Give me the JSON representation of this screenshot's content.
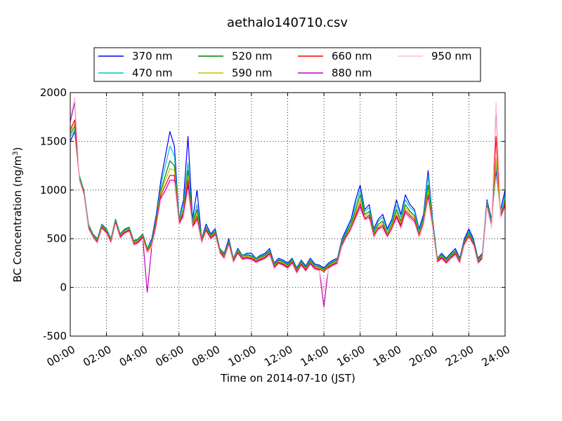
{
  "chart_data": {
    "type": "line",
    "title": "aethalo140710.csv",
    "xlabel": "Time on 2014-07-10 (JST)",
    "ylabel": "BC Concentration (ng/m³)",
    "ylabel_base": "BC Concentration (ng/m",
    "ylabel_sup": "3",
    "ylabel_close": ")",
    "xlim": [
      "00:00",
      "24:00"
    ],
    "ylim": [
      -500,
      2000
    ],
    "grid": true,
    "legend_position": "top",
    "x_ticks": [
      "00:00",
      "02:00",
      "04:00",
      "06:00",
      "08:00",
      "10:00",
      "12:00",
      "14:00",
      "16:00",
      "18:00",
      "20:00",
      "22:00",
      "24:00"
    ],
    "y_ticks": [
      -500,
      0,
      500,
      1000,
      1500,
      2000
    ],
    "x_hours": [
      0,
      0.25,
      0.5,
      0.75,
      1,
      1.25,
      1.5,
      1.75,
      2,
      2.25,
      2.5,
      2.75,
      3,
      3.25,
      3.5,
      3.75,
      4,
      4.25,
      4.5,
      4.75,
      5,
      5.25,
      5.5,
      5.75,
      6,
      6.25,
      6.5,
      6.75,
      7,
      7.25,
      7.5,
      7.75,
      8,
      8.25,
      8.5,
      8.75,
      9,
      9.25,
      9.5,
      9.75,
      10,
      10.25,
      10.5,
      10.75,
      11,
      11.25,
      11.5,
      11.75,
      12,
      12.25,
      12.5,
      12.75,
      13,
      13.25,
      13.5,
      13.75,
      14,
      14.25,
      14.5,
      14.75,
      15,
      15.25,
      15.5,
      15.75,
      16,
      16.25,
      16.5,
      16.75,
      17,
      17.25,
      17.5,
      17.75,
      18,
      18.25,
      18.5,
      18.75,
      19,
      19.25,
      19.5,
      19.75,
      20,
      20.25,
      20.5,
      20.75,
      21,
      21.25,
      21.5,
      21.75,
      22,
      22.25,
      22.5,
      22.75,
      23,
      23.25,
      23.5,
      23.75,
      24
    ],
    "series": [
      {
        "name": "370 nm",
        "color": "#0000ff",
        "values": [
          1500,
          1600,
          1150,
          1000,
          650,
          550,
          500,
          650,
          600,
          500,
          700,
          550,
          600,
          620,
          480,
          500,
          550,
          400,
          500,
          750,
          1100,
          1350,
          1600,
          1450,
          700,
          900,
          1550,
          700,
          1000,
          500,
          650,
          550,
          600,
          400,
          350,
          500,
          300,
          400,
          330,
          350,
          350,
          300,
          330,
          350,
          400,
          250,
          300,
          280,
          250,
          300,
          200,
          280,
          220,
          300,
          240,
          230,
          200,
          250,
          280,
          300,
          500,
          600,
          700,
          900,
          1050,
          800,
          850,
          600,
          700,
          750,
          600,
          700,
          900,
          750,
          950,
          850,
          800,
          600,
          750,
          1200,
          700,
          300,
          350,
          300,
          350,
          400,
          300,
          500,
          600,
          500,
          300,
          350,
          900,
          700,
          1200,
          800,
          1000
        ]
      },
      {
        "name": "470 nm",
        "color": "#00c0c0",
        "values": [
          1550,
          1620,
          1150,
          1000,
          650,
          550,
          500,
          650,
          600,
          500,
          700,
          550,
          600,
          620,
          480,
          500,
          550,
          400,
          480,
          720,
          1050,
          1250,
          1450,
          1350,
          700,
          850,
          1280,
          680,
          850,
          500,
          620,
          540,
          580,
          400,
          340,
          480,
          300,
          390,
          330,
          340,
          330,
          300,
          320,
          340,
          380,
          240,
          290,
          270,
          240,
          290,
          190,
          270,
          210,
          280,
          230,
          220,
          190,
          240,
          270,
          290,
          480,
          580,
          680,
          850,
          1000,
          780,
          820,
          580,
          680,
          720,
          580,
          680,
          850,
          720,
          900,
          820,
          780,
          580,
          720,
          1150,
          680,
          300,
          340,
          290,
          340,
          380,
          290,
          480,
          580,
          480,
          290,
          340,
          880,
          680,
          1250,
          780,
          950
        ]
      },
      {
        "name": "520 nm",
        "color": "#008000",
        "values": [
          1580,
          1650,
          1130,
          990,
          640,
          540,
          490,
          640,
          590,
          490,
          690,
          540,
          590,
          610,
          470,
          490,
          540,
          390,
          460,
          700,
          1000,
          1150,
          1300,
          1250,
          680,
          800,
          1200,
          650,
          800,
          490,
          610,
          530,
          570,
          390,
          330,
          470,
          290,
          380,
          320,
          330,
          320,
          290,
          310,
          330,
          370,
          230,
          280,
          260,
          230,
          280,
          180,
          260,
          200,
          270,
          220,
          210,
          180,
          230,
          260,
          280,
          460,
          560,
          650,
          800,
          950,
          750,
          780,
          560,
          650,
          680,
          550,
          650,
          800,
          680,
          850,
          780,
          740,
          550,
          700,
          1050,
          650,
          290,
          330,
          280,
          330,
          370,
          280,
          470,
          560,
          470,
          280,
          330,
          860,
          650,
          1300,
          750,
          900
        ]
      },
      {
        "name": "590 nm",
        "color": "#c0c000",
        "values": [
          1600,
          1680,
          1120,
          980,
          630,
          530,
          480,
          630,
          580,
          480,
          680,
          530,
          580,
          600,
          460,
          480,
          530,
          380,
          450,
          680,
          980,
          1100,
          1220,
          1200,
          670,
          780,
          1150,
          640,
          760,
          480,
          600,
          520,
          560,
          380,
          320,
          460,
          280,
          370,
          310,
          320,
          310,
          280,
          300,
          320,
          360,
          220,
          270,
          250,
          220,
          270,
          170,
          250,
          190,
          260,
          210,
          200,
          170,
          220,
          250,
          270,
          450,
          540,
          630,
          770,
          900,
          730,
          760,
          540,
          630,
          660,
          540,
          630,
          770,
          660,
          820,
          760,
          720,
          540,
          680,
          1000,
          640,
          280,
          320,
          270,
          320,
          360,
          270,
          460,
          540,
          460,
          270,
          320,
          850,
          640,
          1320,
          740,
          880
        ]
      },
      {
        "name": "660 nm",
        "color": "#ff0000",
        "values": [
          1620,
          1720,
          1110,
          970,
          620,
          520,
          470,
          620,
          570,
          470,
          670,
          520,
          570,
          590,
          450,
          470,
          520,
          370,
          440,
          660,
          950,
          1050,
          1150,
          1150,
          660,
          760,
          1100,
          630,
          730,
          470,
          590,
          510,
          550,
          370,
          310,
          450,
          270,
          360,
          300,
          310,
          300,
          270,
          290,
          310,
          350,
          210,
          260,
          240,
          210,
          260,
          160,
          240,
          180,
          250,
          200,
          190,
          160,
          210,
          240,
          260,
          440,
          530,
          610,
          740,
          860,
          710,
          740,
          530,
          610,
          640,
          530,
          610,
          740,
          640,
          790,
          740,
          700,
          530,
          660,
          950,
          620,
          270,
          310,
          260,
          310,
          350,
          260,
          450,
          530,
          450,
          260,
          310,
          840,
          630,
          1550,
          730,
          860
        ]
      },
      {
        "name": "880 nm",
        "color": "#c000c0",
        "values": [
          1700,
          1900,
          1100,
          960,
          610,
          520,
          460,
          610,
          560,
          460,
          660,
          510,
          560,
          580,
          440,
          460,
          510,
          -50,
          430,
          640,
          920,
          1000,
          1100,
          1100,
          650,
          740,
          1050,
          620,
          700,
          460,
          580,
          500,
          540,
          360,
          300,
          440,
          260,
          350,
          290,
          300,
          290,
          260,
          280,
          300,
          340,
          200,
          250,
          230,
          200,
          250,
          150,
          230,
          170,
          240,
          190,
          180,
          -200,
          200,
          230,
          250,
          430,
          520,
          600,
          720,
          830,
          700,
          720,
          520,
          600,
          620,
          520,
          600,
          720,
          620,
          770,
          720,
          680,
          520,
          650,
          920,
          610,
          260,
          300,
          250,
          300,
          340,
          250,
          440,
          520,
          440,
          250,
          300,
          830,
          620,
          1850,
          720,
          840
        ]
      },
      {
        "name": "950 nm",
        "color": "#ffc0cb",
        "values": [
          1750,
          1950,
          1100,
          950,
          600,
          510,
          450,
          600,
          550,
          450,
          650,
          500,
          550,
          570,
          430,
          450,
          500,
          350,
          420,
          620,
          900,
          980,
          1080,
          1080,
          640,
          720,
          1000,
          610,
          680,
          450,
          570,
          490,
          530,
          350,
          290,
          430,
          250,
          340,
          280,
          290,
          280,
          250,
          270,
          290,
          330,
          190,
          240,
          220,
          190,
          240,
          140,
          220,
          160,
          230,
          180,
          170,
          -50,
          190,
          220,
          240,
          420,
          510,
          590,
          700,
          800,
          690,
          700,
          510,
          590,
          600,
          510,
          590,
          700,
          600,
          750,
          700,
          660,
          510,
          640,
          900,
          600,
          250,
          290,
          240,
          290,
          330,
          240,
          430,
          510,
          430,
          240,
          290,
          820,
          610,
          1900,
          710,
          820
        ]
      }
    ]
  }
}
